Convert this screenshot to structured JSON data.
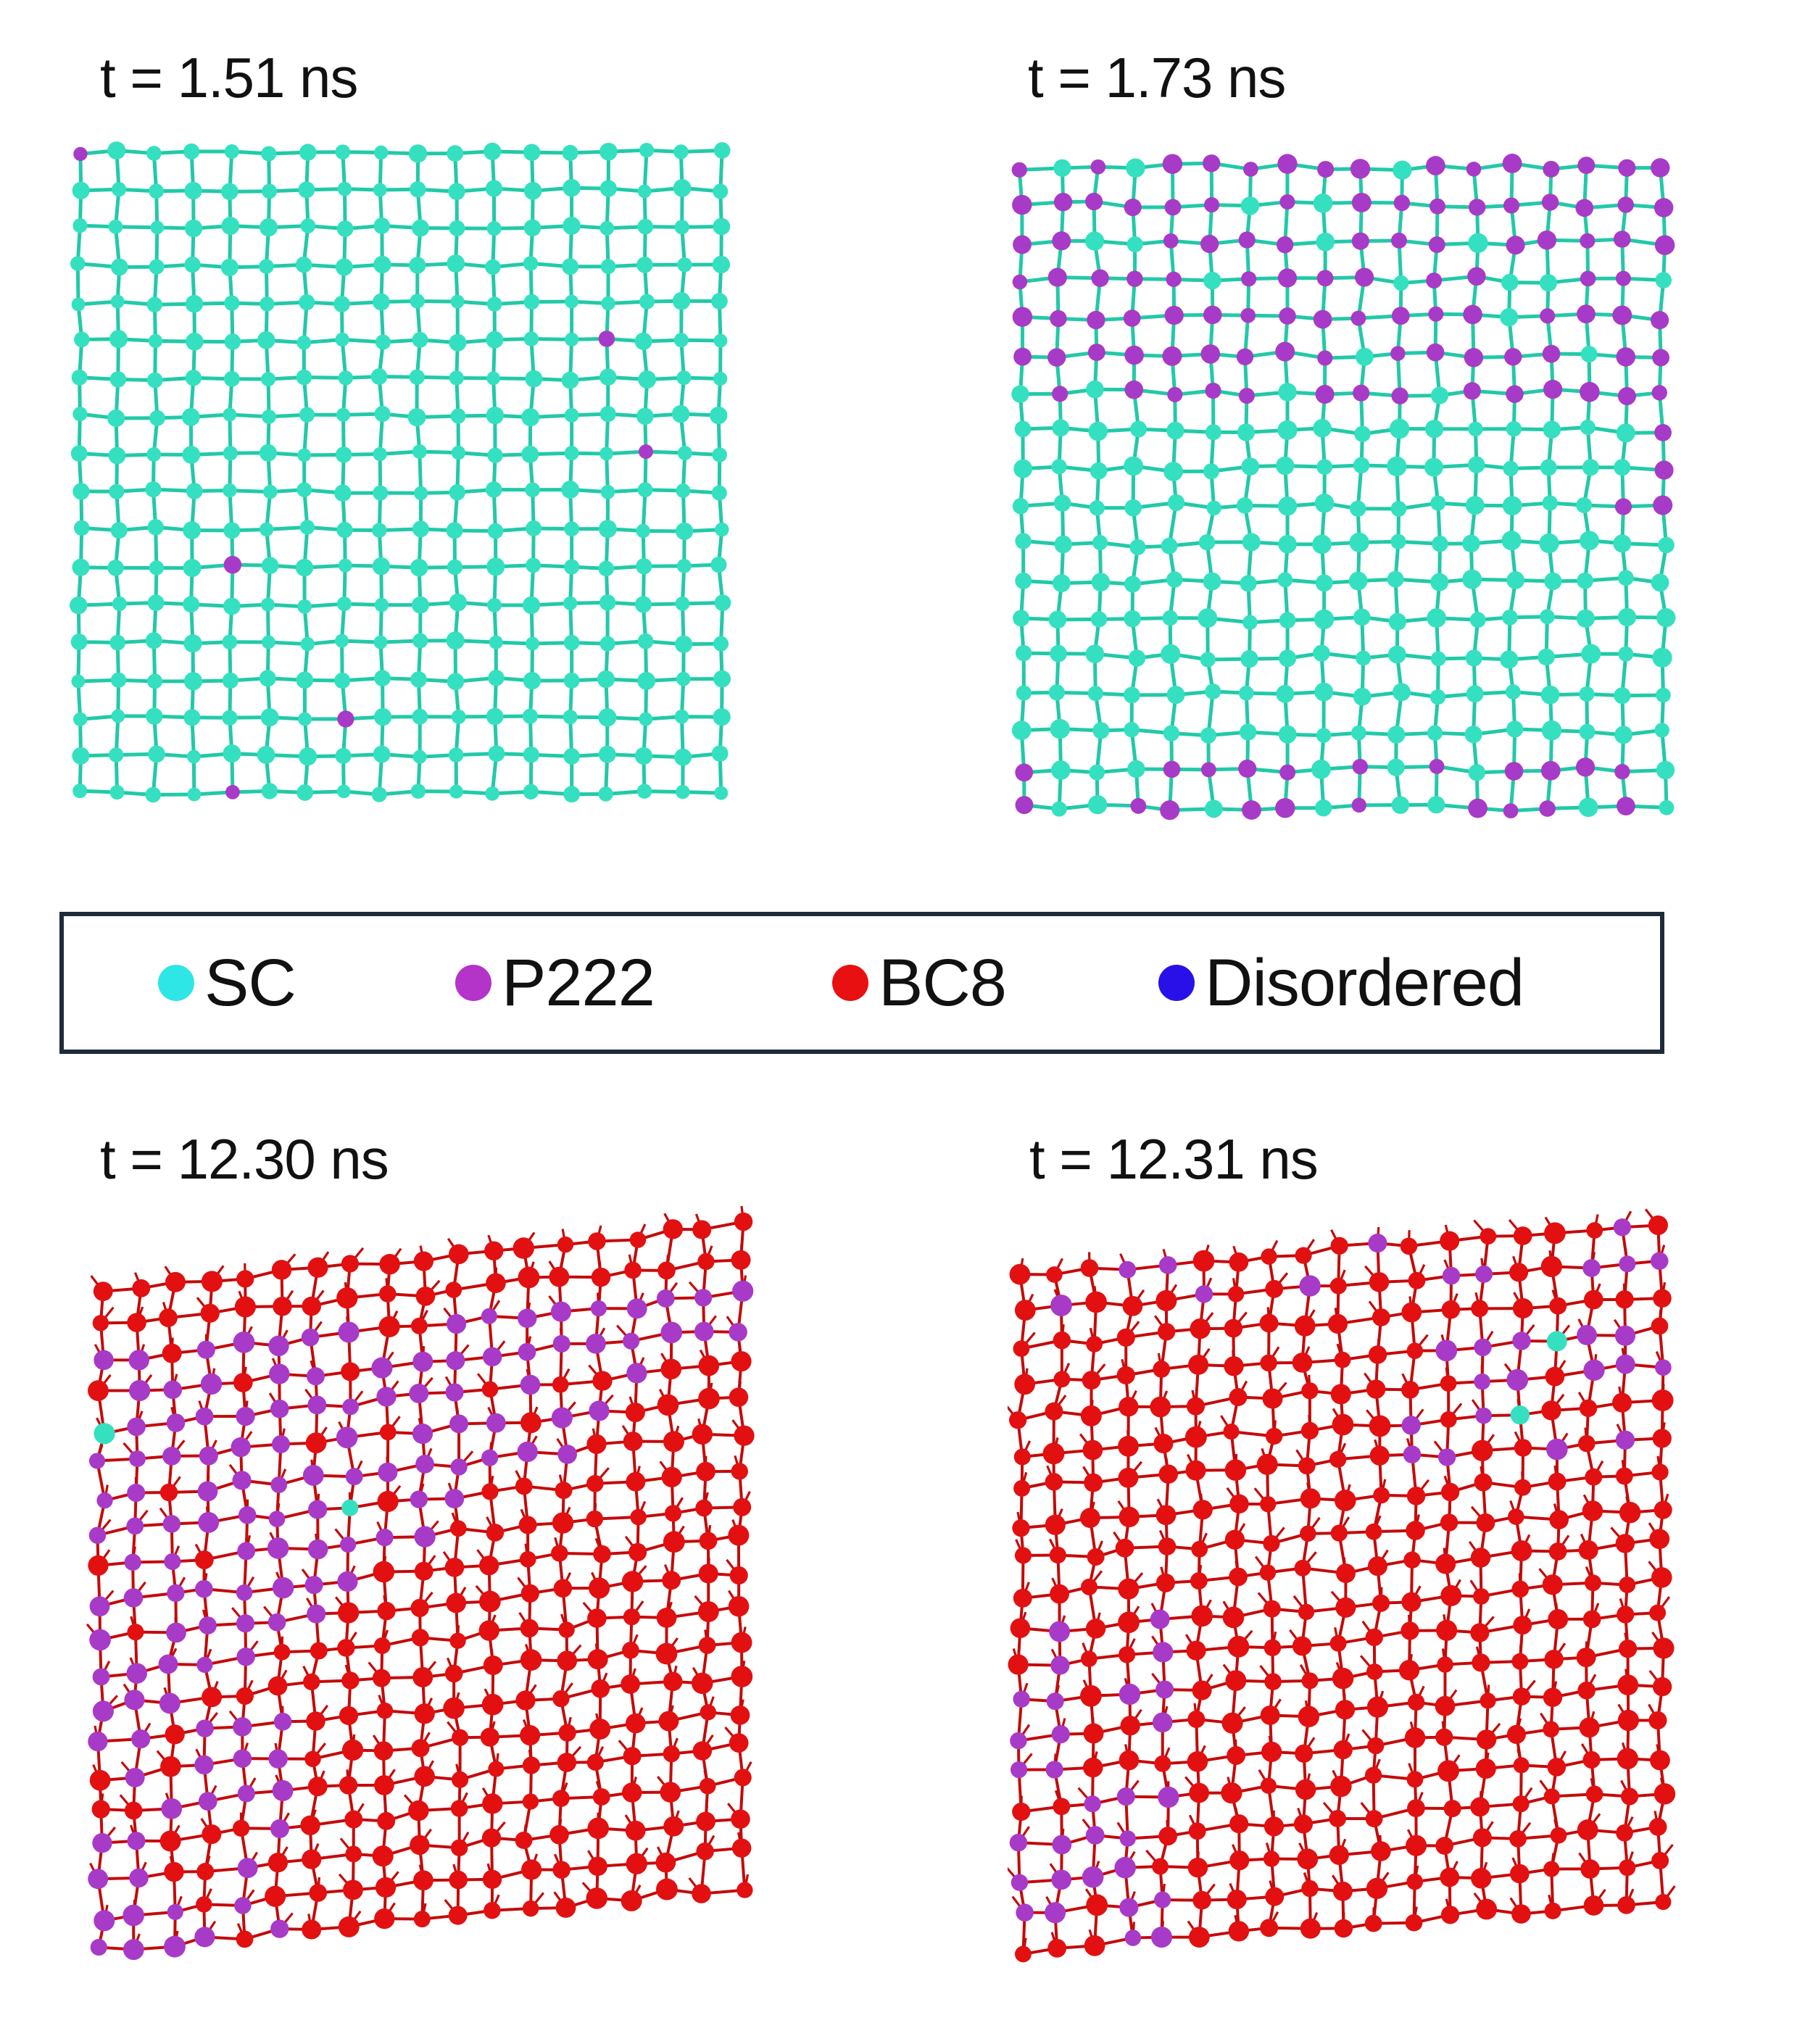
{
  "figure": {
    "panels": [
      {
        "time_label": "t = 1.51 ns",
        "description_phase_mix": "sc-dominant"
      },
      {
        "time_label": "t = 1.73 ns",
        "description_phase_mix": "sc-p222-mixed"
      },
      {
        "time_label": "t = 12.30 ns",
        "description_phase_mix": "p222-bc8-mixed"
      },
      {
        "time_label": "t = 12.31 ns",
        "description_phase_mix": "bc8-dominant"
      }
    ],
    "legend": [
      {
        "label": "SC",
        "color": "#2ee6e6"
      },
      {
        "label": "P222",
        "color": "#b433c8"
      },
      {
        "label": "BC8",
        "color": "#e81010"
      },
      {
        "label": "Disordered",
        "color": "#2a10e8"
      }
    ],
    "colors": {
      "sc_atom": "#35e0c0",
      "sc_bond": "#22c9a8",
      "p222_atom": "#a83ac8",
      "bc8_atom": "#e21010",
      "bc8_bond": "#c40a0a"
    }
  }
}
